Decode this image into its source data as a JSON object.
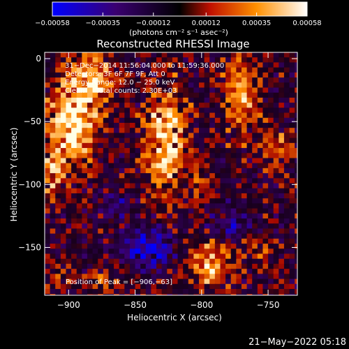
{
  "chart_data": {
    "type": "heatmap",
    "title": "Reconstructed RHESSI Image",
    "xlabel": "Heliocentric X (arcsec)",
    "ylabel": "Heliocentric Y (arcsec)",
    "xlim": [
      -918,
      -728
    ],
    "ylim": [
      -188,
      5
    ],
    "x_ticks": [
      -900,
      -850,
      -800,
      -750
    ],
    "x_tick_labels": [
      "−900",
      "−850",
      "−800",
      "−750"
    ],
    "y_ticks": [
      0,
      -50,
      -100,
      -150
    ],
    "y_tick_labels": [
      "0",
      "−50",
      "−100",
      "−150"
    ],
    "colorbar": {
      "ticks": [
        -0.00058,
        -0.00035,
        -0.00012,
        0.00012,
        0.00035,
        0.00058
      ],
      "tick_labels": [
        "−0.00058",
        "−0.00035",
        "−0.00012",
        "0.00012",
        "0.00035",
        "0.00058"
      ],
      "range": [
        -0.00058,
        0.00058
      ],
      "units_label": "(photons cm⁻² s⁻¹ asec⁻²)",
      "colors": [
        "#0000ff",
        "#3a0070",
        "#000000",
        "#c01000",
        "#ff9000",
        "#ffffff"
      ]
    },
    "annotations": [
      "31−Dec−2014 11:56:04.000 to 11:59:36.000",
      "Detectors: 3F 6F 7F 9F, Att 0",
      "Energy Range: 12.0 − 25.0 keV",
      "Clean     Total counts: 2.30E+03"
    ],
    "peak_label": "Position of Peak = [−906,−63]",
    "peak": [
      -906,
      -63
    ],
    "sources": [
      {
        "x": -897,
        "y": -52,
        "amp": 1.0,
        "sx": 14,
        "sy": 22
      },
      {
        "x": -882,
        "y": -15,
        "amp": 0.75,
        "sx": 12,
        "sy": 15
      },
      {
        "x": -913,
        "y": -93,
        "amp": 0.6,
        "sx": 8,
        "sy": 14
      },
      {
        "x": -827,
        "y": -65,
        "amp": 0.9,
        "sx": 11,
        "sy": 30
      },
      {
        "x": -800,
        "y": -100,
        "amp": 0.35,
        "sx": 7,
        "sy": 12
      },
      {
        "x": -770,
        "y": -28,
        "amp": 0.6,
        "sx": 10,
        "sy": 22
      },
      {
        "x": -740,
        "y": -72,
        "amp": 0.45,
        "sx": 10,
        "sy": 12
      },
      {
        "x": -795,
        "y": -162,
        "amp": 0.75,
        "sx": 12,
        "sy": 14
      },
      {
        "x": -876,
        "y": -178,
        "amp": 0.4,
        "sx": 10,
        "sy": 8
      },
      {
        "x": -910,
        "y": -172,
        "amp": 0.3,
        "sx": 8,
        "sy": 8
      },
      {
        "x": -758,
        "y": -150,
        "amp": 0.3,
        "sx": 8,
        "sy": 10
      },
      {
        "x": -840,
        "y": -150,
        "amp": -0.9,
        "sx": 14,
        "sy": 10
      },
      {
        "x": -780,
        "y": -135,
        "amp": -0.5,
        "sx": 12,
        "sy": 8
      },
      {
        "x": -865,
        "y": -115,
        "amp": -0.4,
        "sx": 10,
        "sy": 8
      }
    ]
  },
  "footer": {
    "timestamp": "21−May−2022 05:18"
  }
}
